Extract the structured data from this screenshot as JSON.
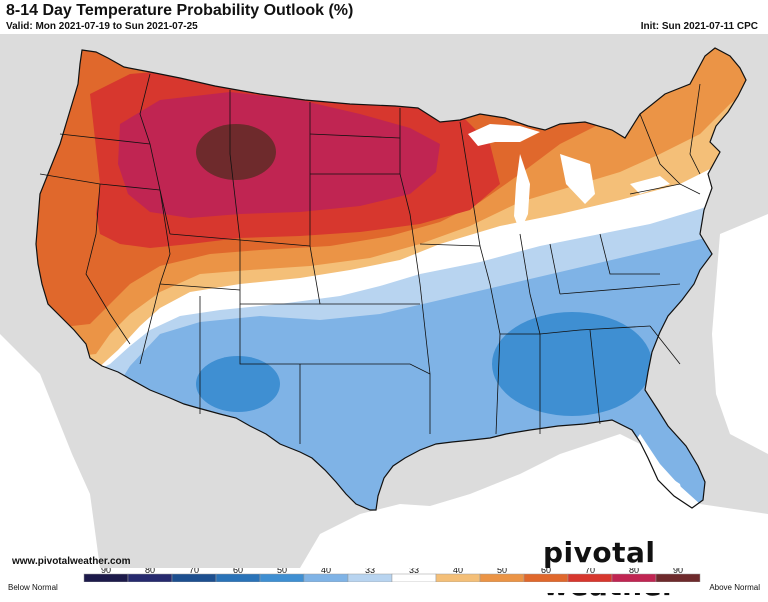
{
  "title": "8-14 Day Temperature Probability Outlook (%)",
  "valid_text": "Valid: Mon 2021-07-19 to Sun 2021-07-25",
  "init_text": "Init: Sun 2021-07-11 CPC",
  "website": "www.pivotalweather.com",
  "brand": "pivotal weather",
  "legend": {
    "below_label": "Below Normal",
    "above_label": "Above Normal",
    "bins": [
      {
        "label": "90",
        "color": "#1c1a4a"
      },
      {
        "label": "80",
        "color": "#262a6e"
      },
      {
        "label": "70",
        "color": "#1d4f8f"
      },
      {
        "label": "60",
        "color": "#2a73b8"
      },
      {
        "label": "50",
        "color": "#3f8fd2"
      },
      {
        "label": "40",
        "color": "#7fb3e6"
      },
      {
        "label": "33",
        "color": "#b8d4f0"
      },
      {
        "label": "33",
        "color": "#ffffff"
      },
      {
        "label": "40",
        "color": "#f4bf78"
      },
      {
        "label": "50",
        "color": "#eb9446"
      },
      {
        "label": "60",
        "color": "#e0682c"
      },
      {
        "label": "70",
        "color": "#d7372e"
      },
      {
        "label": "80",
        "color": "#c02552"
      },
      {
        "label": "90",
        "color": "#6e2a2c"
      }
    ]
  },
  "map_colors": {
    "land_outside": "#dcdcdc",
    "lakes": "#ffffff"
  }
}
